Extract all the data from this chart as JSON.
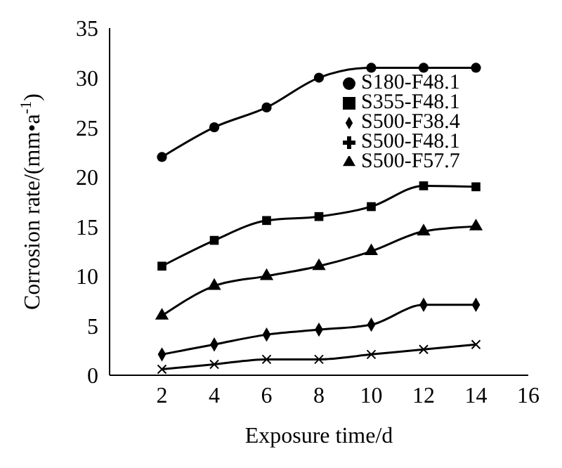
{
  "chart_data": {
    "type": "line",
    "xlabel": "Exposure time/d",
    "ylabel": "Corrosion rate/(mm•a$^{-1}$)",
    "x": [
      2,
      4,
      6,
      8,
      10,
      12,
      14
    ],
    "xlim": [
      0,
      16
    ],
    "xticks": [
      2,
      4,
      6,
      8,
      10,
      12,
      14,
      16
    ],
    "ylim": [
      0,
      35
    ],
    "yticks": [
      0,
      5,
      10,
      15,
      20,
      25,
      30,
      35
    ],
    "grid": false,
    "legend": "top right",
    "line_style": "solid",
    "series": [
      {
        "name": "S180-F48.1",
        "color": "#000000",
        "marker": "circle",
        "values": [
          22,
          25,
          27,
          30,
          31,
          31,
          31
        ]
      },
      {
        "name": "S355-F48.1",
        "color": "#000000",
        "marker": "square",
        "values": [
          11,
          13.6,
          15.6,
          16,
          17,
          19.1,
          19
        ]
      },
      {
        "name": "S500-F48.1",
        "color": "#000000",
        "marker": "cross",
        "values": [
          0.6,
          1.1,
          1.6,
          1.6,
          2.1,
          2.6,
          3.1
        ]
      },
      {
        "name": "S500-F38.4",
        "color": "#000000",
        "marker": "diamond",
        "values": [
          2.1,
          3.1,
          4.1,
          4.6,
          5.1,
          7.1,
          7.1
        ]
      },
      {
        "name": "S500-F57.7",
        "color": "#000000",
        "marker": "triangle",
        "values": [
          6,
          9,
          10,
          11,
          12.5,
          14.5,
          15
        ]
      }
    ]
  }
}
